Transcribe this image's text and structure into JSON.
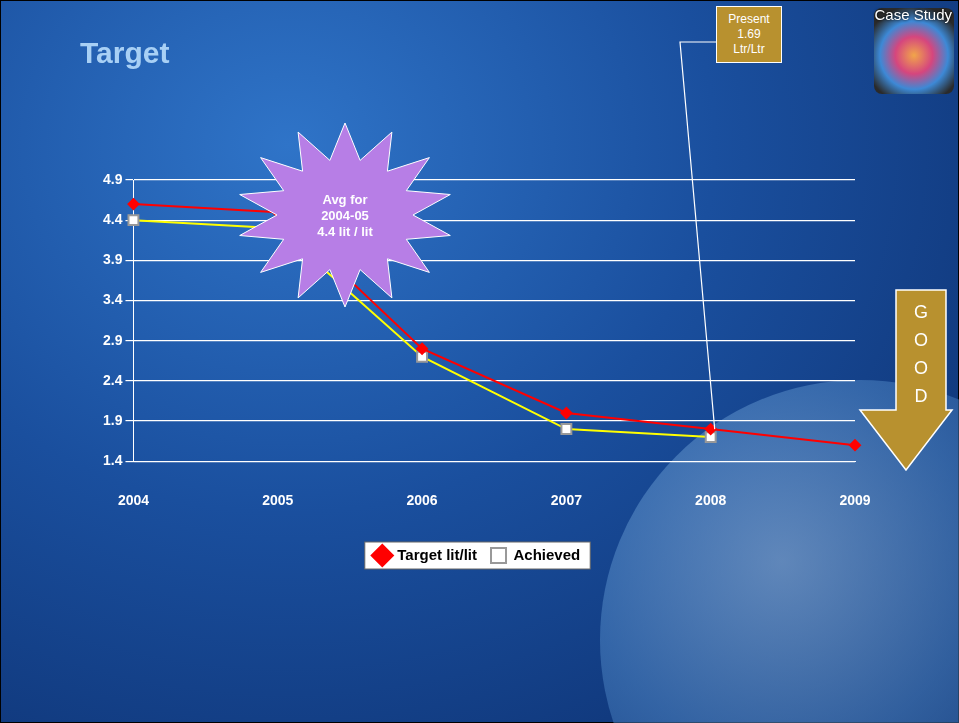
{
  "chart_data": {
    "type": "line",
    "title": "Target",
    "categories": [
      "2004",
      "2005",
      "2006",
      "2007",
      "2008",
      "2009"
    ],
    "series": [
      {
        "name": "Target lit/lit",
        "color": "#ff0000",
        "marker": "diamond",
        "values": [
          4.6,
          4.5,
          2.8,
          2.0,
          1.8,
          1.6
        ]
      },
      {
        "name": "Achieved",
        "color": "#ffff00",
        "marker": "square",
        "values": [
          4.4,
          4.3,
          2.7,
          1.8,
          1.7,
          null
        ]
      }
    ],
    "ylim": [
      1.4,
      4.9
    ],
    "yticks": [
      1.4,
      1.9,
      2.4,
      2.9,
      3.4,
      3.9,
      4.4,
      4.9
    ],
    "grid": true,
    "legend": "bottom",
    "annotations": {
      "corner": "Case Study",
      "callout": [
        "Avg for",
        "2004-05",
        "4.4 lit / lit"
      ],
      "present": [
        "Present",
        "1.69",
        "Ltr/Ltr"
      ],
      "direction": "GOOD"
    }
  }
}
